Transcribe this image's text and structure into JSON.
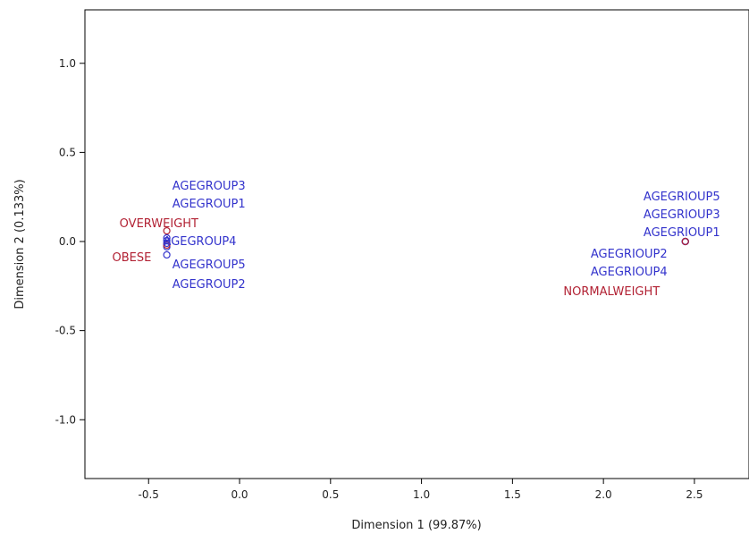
{
  "chart_data": {
    "type": "scatter",
    "xlabel": "Dimension 1 (99.87%)",
    "ylabel": "Dimension 2 (0.133%)",
    "xlim": [
      -0.85,
      2.8
    ],
    "ylim": [
      -1.33,
      1.3
    ],
    "x_ticks": [
      {
        "value": -0.5,
        "label": "-0.5"
      },
      {
        "value": 0.0,
        "label": "0.0"
      },
      {
        "value": 0.5,
        "label": "0.5"
      },
      {
        "value": 1.0,
        "label": "1.0"
      },
      {
        "value": 1.5,
        "label": "1.5"
      },
      {
        "value": 2.0,
        "label": "2.0"
      },
      {
        "value": 2.5,
        "label": "2.5"
      }
    ],
    "y_ticks": [
      {
        "value": -1.0,
        "label": "-1.0"
      },
      {
        "value": -0.5,
        "label": "-0.5"
      },
      {
        "value": 0.0,
        "label": "0.0"
      },
      {
        "value": 0.5,
        "label": "0.5"
      },
      {
        "value": 1.0,
        "label": "1.0"
      }
    ],
    "grid": false,
    "colors": {
      "blue": "#3333cc",
      "red": "#b22234"
    },
    "points": [
      {
        "label": "AGEGROUP3",
        "x": -0.4,
        "y": 0.02,
        "color": "blue",
        "marker": "circle",
        "label_x": -0.37,
        "label_y": 0.31,
        "anchor": "start"
      },
      {
        "label": "AGEGROUP1",
        "x": -0.4,
        "y": 0.005,
        "color": "blue",
        "marker": "circle",
        "label_x": -0.37,
        "label_y": 0.21,
        "anchor": "start"
      },
      {
        "label": "AGEGROUP4",
        "x": -0.4,
        "y": -0.01,
        "color": "blue",
        "marker": "circle",
        "label_x": -0.42,
        "label_y": 0.0,
        "anchor": "start"
      },
      {
        "label": "AGEGROUP5",
        "x": -0.4,
        "y": -0.075,
        "color": "blue",
        "marker": "circle",
        "label_x": -0.37,
        "label_y": -0.13,
        "anchor": "start"
      },
      {
        "label": "AGEGROUP2",
        "x": -0.4,
        "y": -0.03,
        "color": "blue",
        "marker": "circle",
        "label_x": -0.37,
        "label_y": -0.24,
        "anchor": "start"
      },
      {
        "label": "OVERWEIGHT",
        "x": -0.4,
        "y": 0.06,
        "color": "red",
        "marker": "circle",
        "label_x": -0.66,
        "label_y": 0.1,
        "anchor": "start"
      },
      {
        "label": "OBESE",
        "x": -0.4,
        "y": -0.02,
        "color": "red",
        "marker": "circle",
        "label_x": -0.7,
        "label_y": -0.09,
        "anchor": "start"
      },
      {
        "label": "AGEGRIOUP5",
        "x": 2.45,
        "y": 0.0,
        "color": "blue",
        "marker": "circle",
        "label_x": 2.22,
        "label_y": 0.25,
        "anchor": "start"
      },
      {
        "label": "AGEGRIOUP3",
        "x": 2.45,
        "y": 0.0,
        "color": "blue",
        "marker": "circle",
        "label_x": 2.22,
        "label_y": 0.15,
        "anchor": "start"
      },
      {
        "label": "AGEGRIOUP1",
        "x": 2.45,
        "y": 0.0,
        "color": "blue",
        "marker": "circle",
        "label_x": 2.22,
        "label_y": 0.05,
        "anchor": "start"
      },
      {
        "label": "AGEGRIOUP2",
        "x": 2.45,
        "y": 0.0,
        "color": "blue",
        "marker": "circle",
        "label_x": 1.93,
        "label_y": -0.07,
        "anchor": "start"
      },
      {
        "label": "AGEGRIOUP4",
        "x": 2.45,
        "y": 0.0,
        "color": "blue",
        "marker": "circle",
        "label_x": 1.93,
        "label_y": -0.17,
        "anchor": "start"
      },
      {
        "label": "NORMALWEIGHT",
        "x": 2.45,
        "y": 0.0,
        "color": "red",
        "marker": "circle",
        "label_x": 1.78,
        "label_y": -0.28,
        "anchor": "start"
      }
    ]
  }
}
